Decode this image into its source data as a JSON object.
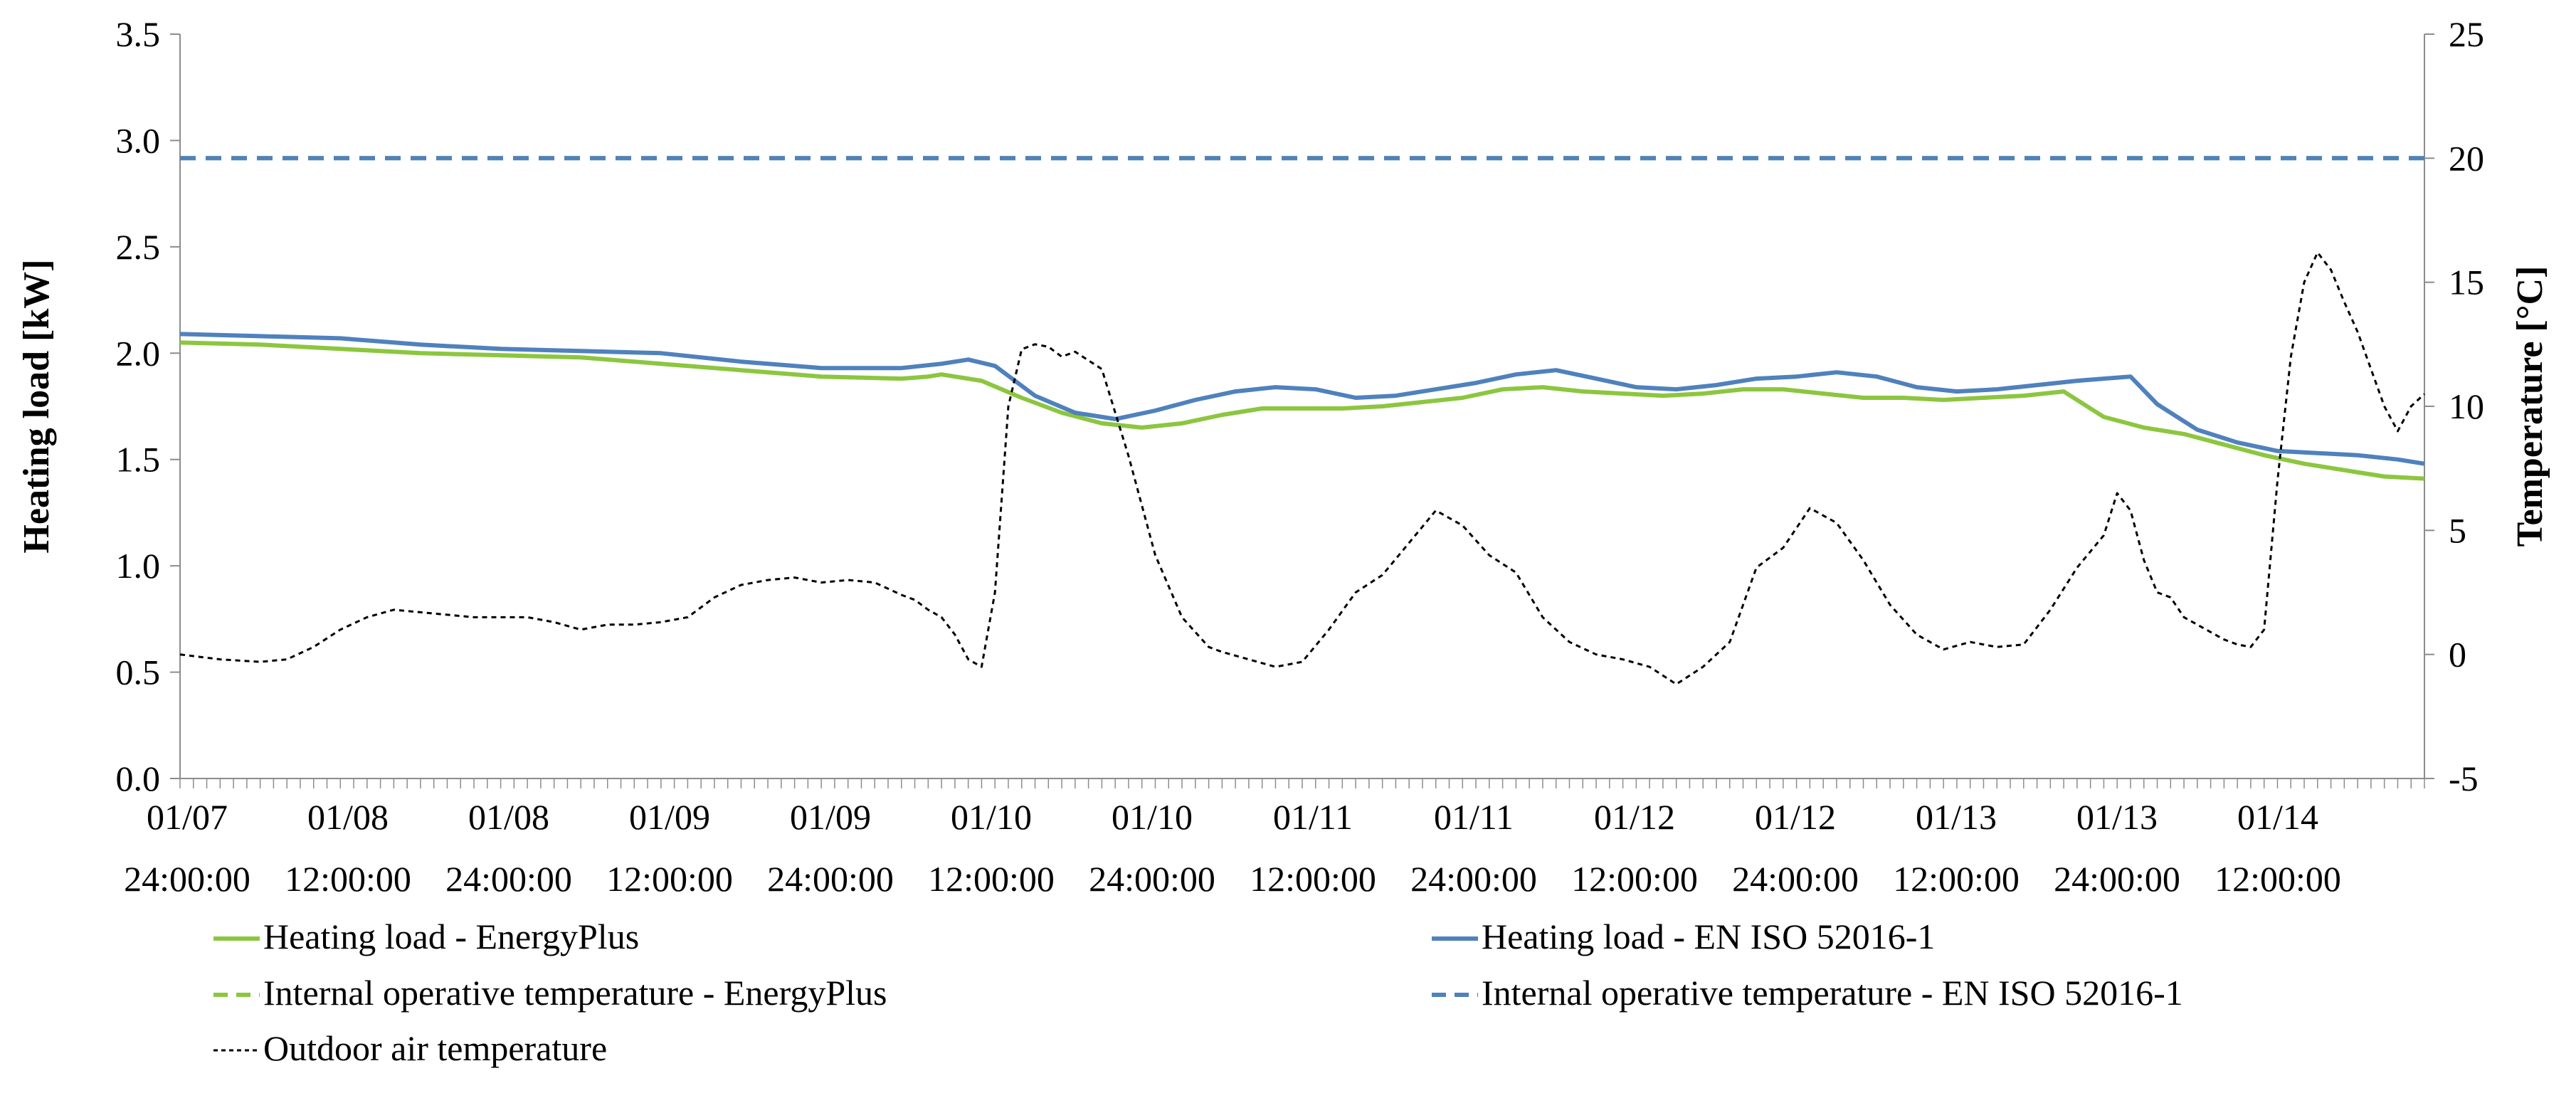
{
  "chart_data": {
    "type": "line",
    "title": "",
    "ylabel": "Heating load [kW]",
    "y2label": "Temperature [°C]",
    "xlabel": "",
    "ylim": [
      0,
      3.5
    ],
    "y2lim": [
      -5,
      25
    ],
    "yticks": [
      "0.0",
      "0.5",
      "1.0",
      "1.5",
      "2.0",
      "2.5",
      "3.0",
      "3.5"
    ],
    "y2ticks": [
      "-5",
      "0",
      "5",
      "10",
      "15",
      "20",
      "25"
    ],
    "x_range": [
      0,
      168
    ],
    "x_tick_labels": [
      {
        "date": "01/07",
        "time": "24:00:00"
      },
      {
        "date": "01/08",
        "time": "12:00:00"
      },
      {
        "date": "01/08",
        "time": "24:00:00"
      },
      {
        "date": "01/09",
        "time": "12:00:00"
      },
      {
        "date": "01/09",
        "time": "24:00:00"
      },
      {
        "date": "01/10",
        "time": "12:00:00"
      },
      {
        "date": "01/10",
        "time": "24:00:00"
      },
      {
        "date": "01/11",
        "time": "12:00:00"
      },
      {
        "date": "01/11",
        "time": "24:00:00"
      },
      {
        "date": "01/12",
        "time": "12:00:00"
      },
      {
        "date": "01/12",
        "time": "24:00:00"
      },
      {
        "date": "01/13",
        "time": "12:00:00"
      },
      {
        "date": "01/13",
        "time": "24:00:00"
      },
      {
        "date": "01/14",
        "time": "12:00:00"
      }
    ],
    "grid": false,
    "legend_position": "bottom",
    "series": [
      {
        "name": "Heating load - EnergyPlus",
        "axis": "left",
        "color": "#8cc63f",
        "style": "solid",
        "x": [
          0,
          6,
          12,
          18,
          24,
          30,
          36,
          42,
          48,
          54,
          56,
          57,
          60,
          63,
          66,
          69,
          72,
          75,
          78,
          81,
          84,
          87,
          90,
          93,
          96,
          99,
          102,
          105,
          108,
          111,
          114,
          117,
          120,
          123,
          126,
          129,
          132,
          135,
          138,
          141,
          144,
          147,
          150,
          153,
          156,
          159,
          162,
          165,
          168
        ],
        "values": [
          2.05,
          2.04,
          2.02,
          2.0,
          1.99,
          1.98,
          1.95,
          1.92,
          1.89,
          1.88,
          1.89,
          1.9,
          1.87,
          1.79,
          1.72,
          1.67,
          1.65,
          1.67,
          1.71,
          1.74,
          1.74,
          1.74,
          1.75,
          1.77,
          1.79,
          1.83,
          1.84,
          1.82,
          1.81,
          1.8,
          1.81,
          1.83,
          1.83,
          1.81,
          1.79,
          1.79,
          1.78,
          1.79,
          1.8,
          1.82,
          1.7,
          1.65,
          1.62,
          1.57,
          1.52,
          1.48,
          1.45,
          1.42,
          1.41
        ]
      },
      {
        "name": "Heating load - EN ISO 52016-1",
        "axis": "left",
        "color": "#4f81bd",
        "style": "solid",
        "x": [
          0,
          6,
          12,
          18,
          24,
          30,
          36,
          42,
          48,
          54,
          57,
          59,
          61,
          64,
          67,
          70,
          73,
          76,
          79,
          82,
          85,
          88,
          91,
          94,
          97,
          100,
          103,
          106,
          109,
          112,
          115,
          118,
          121,
          124,
          127,
          130,
          133,
          136,
          139,
          142,
          144,
          146,
          148,
          151,
          154,
          157,
          160,
          163,
          166,
          168
        ],
        "values": [
          2.09,
          2.08,
          2.07,
          2.04,
          2.02,
          2.01,
          2.0,
          1.96,
          1.93,
          1.93,
          1.95,
          1.97,
          1.94,
          1.8,
          1.72,
          1.69,
          1.73,
          1.78,
          1.82,
          1.84,
          1.83,
          1.79,
          1.8,
          1.83,
          1.86,
          1.9,
          1.92,
          1.88,
          1.84,
          1.83,
          1.85,
          1.88,
          1.89,
          1.91,
          1.89,
          1.84,
          1.82,
          1.83,
          1.85,
          1.87,
          1.88,
          1.89,
          1.76,
          1.64,
          1.58,
          1.54,
          1.53,
          1.52,
          1.5,
          1.48
        ]
      },
      {
        "name": "Internal operative temperature - EnergyPlus",
        "axis": "right",
        "color": "#8cc63f",
        "style": "dashed",
        "x": [
          0,
          168
        ],
        "values": [
          20,
          20
        ]
      },
      {
        "name": "Internal operative temperature - EN ISO 52016-1",
        "axis": "right",
        "color": "#4f81bd",
        "style": "dashed",
        "x": [
          0,
          168
        ],
        "values": [
          20,
          20
        ]
      },
      {
        "name": "Outdoor air temperature",
        "axis": "right",
        "color": "#000000",
        "style": "dotted",
        "x": [
          0,
          3,
          6,
          8,
          10,
          12,
          14,
          16,
          18,
          20,
          22,
          24,
          26,
          28,
          30,
          32,
          34,
          36,
          38,
          40,
          42,
          44,
          46,
          48,
          50,
          52,
          54,
          55,
          56,
          57,
          58,
          59,
          60,
          61,
          62,
          63,
          64,
          65,
          66,
          67,
          69,
          71,
          73,
          75,
          77,
          78,
          80,
          82,
          84,
          86,
          88,
          90,
          92,
          94,
          96,
          98,
          100,
          102,
          104,
          106,
          108,
          110,
          112,
          114,
          116,
          118,
          120,
          122,
          124,
          126,
          128,
          130,
          132,
          134,
          136,
          138,
          140,
          142,
          144,
          145,
          146,
          147,
          148,
          149,
          150,
          151,
          152,
          153,
          154,
          155,
          156,
          157,
          158,
          159,
          160,
          161,
          162,
          163,
          164,
          165,
          166,
          167,
          168
        ],
        "values": [
          0.0,
          -0.2,
          -0.3,
          -0.2,
          0.3,
          1.0,
          1.5,
          1.8,
          1.7,
          1.6,
          1.5,
          1.5,
          1.5,
          1.3,
          1.0,
          1.2,
          1.2,
          1.3,
          1.5,
          2.3,
          2.8,
          3.0,
          3.1,
          2.9,
          3.0,
          2.9,
          2.4,
          2.2,
          1.8,
          1.5,
          0.8,
          -0.2,
          -0.5,
          2.5,
          10.0,
          12.3,
          12.5,
          12.4,
          12.0,
          12.2,
          11.5,
          8.0,
          4.0,
          1.5,
          0.3,
          0.1,
          -0.2,
          -0.5,
          -0.3,
          1.0,
          2.5,
          3.2,
          4.5,
          5.8,
          5.2,
          4.0,
          3.3,
          1.5,
          0.5,
          0.0,
          -0.2,
          -0.5,
          -1.2,
          -0.5,
          0.5,
          3.5,
          4.3,
          5.9,
          5.3,
          3.8,
          2.0,
          0.8,
          0.2,
          0.5,
          0.3,
          0.4,
          1.8,
          3.5,
          4.8,
          6.5,
          5.8,
          3.8,
          2.5,
          2.3,
          1.5,
          1.2,
          0.9,
          0.6,
          0.4,
          0.3,
          1.0,
          7.0,
          12.0,
          15.0,
          16.2,
          15.5,
          14.2,
          13.0,
          11.5,
          10.0,
          9.0,
          10.0,
          10.5
        ]
      }
    ]
  }
}
